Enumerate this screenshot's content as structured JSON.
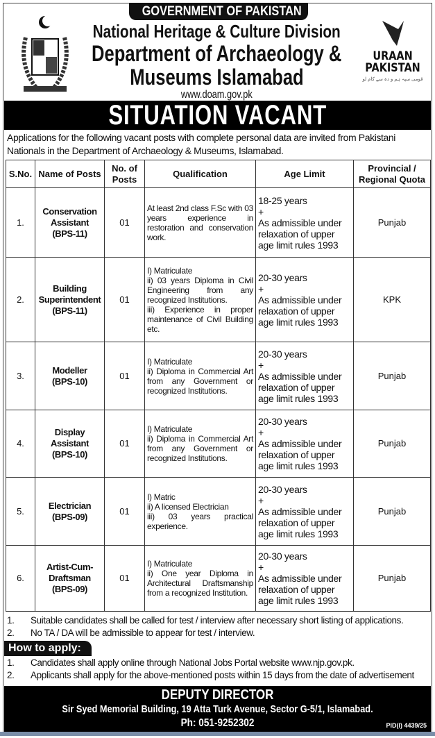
{
  "header": {
    "gov": "GOVERNMENT OF PAKISTAN",
    "division": "National Heritage & Culture Division",
    "dept_line1": "Department of Archaeology &",
    "dept_line2": "Museums Islamabad",
    "website": "www.doam.gov.pk",
    "logo_text_1": "URAAN",
    "logo_text_2": "PAKISTAN",
    "logo_urdu": "قومی سپہ ہم و دہ سے کام لو"
  },
  "title": "SITUATION VACANT",
  "intro": "Applications for the following vacant posts with complete personal data are invited from Pakistani Nationals in the Department of Archaeology & Museums, Islamabad.",
  "table": {
    "headers": [
      "S.No.",
      "Name of Posts",
      "No. of Posts",
      "Qualification",
      "Age Limit",
      "Provincial / Regional Quota"
    ],
    "rows": [
      {
        "sno": "1.",
        "post": [
          "Conservation",
          "Assistant",
          "(BPS-11)"
        ],
        "count": "01",
        "qual": [
          "At least 2nd class F.Sc with 03 years experience in restoration and conservation work."
        ],
        "age": [
          "18-25 years",
          "+",
          "As admissible under relaxation of upper age limit rules 1993"
        ],
        "quota": "Punjab"
      },
      {
        "sno": "2.",
        "post": [
          "Building",
          "Superintendent",
          "(BPS-11)"
        ],
        "count": "01",
        "qual": [
          "I) Matriculate",
          "ii) 03 years Diploma in Civil Engineering from any recognized Institutions.",
          "iii) Experience in proper maintenance of Civil Building etc."
        ],
        "age": [
          "20-30 years",
          "+",
          "As admissible under relaxation of upper age limit rules 1993"
        ],
        "quota": "KPK"
      },
      {
        "sno": "3.",
        "post": [
          "Modeller",
          "(BPS-10)"
        ],
        "count": "01",
        "qual": [
          "I) Matriculate",
          "ii) Diploma in Commercial Art from any Government or recognized Institutions."
        ],
        "age": [
          "20-30 years",
          "+",
          "As admissible under relaxation of upper age limit rules 1993"
        ],
        "quota": "Punjab"
      },
      {
        "sno": "4.",
        "post": [
          "Display",
          "Assistant",
          "(BPS-10)"
        ],
        "count": "01",
        "qual": [
          "I) Matriculate",
          "ii) Diploma in Commercial Art from any Government or recognized Institutions."
        ],
        "age": [
          "20-30 years",
          "+",
          "As admissible under relaxation of upper age limit rules 1993"
        ],
        "quota": "Punjab"
      },
      {
        "sno": "5.",
        "post": [
          "Electrician",
          "(BPS-09)"
        ],
        "count": "01",
        "qual": [
          "I) Matric",
          "ii) A licensed Electrician",
          "iii) 03 years practical experience."
        ],
        "age": [
          "20-30 years",
          "+",
          "As admissible under relaxation of upper age limit rules 1993"
        ],
        "quota": "Punjab"
      },
      {
        "sno": "6.",
        "post": [
          "Artist-Cum-",
          "Draftsman",
          "(BPS-09)"
        ],
        "count": "01",
        "qual": [
          "I) Matriculate",
          "ii) One year Diploma in Architectural Draftsmanship from a recognized Institution."
        ],
        "age": [
          "20-30 years",
          "+",
          "As admissible under relaxation of upper age limit rules 1993"
        ],
        "quota": "Punjab"
      }
    ]
  },
  "notes": [
    {
      "n": "1.",
      "t": "Suitable candidates shall be called for test / interview after necessary short listing of applications."
    },
    {
      "n": "2.",
      "t": "No TA / DA will be admissible to appear for test / interview."
    }
  ],
  "how_to_apply": {
    "title": "How to apply:",
    "items": [
      {
        "n": "1.",
        "t": "Candidates shall apply online through National Jobs Portal website www.njp.gov.pk."
      },
      {
        "n": "2.",
        "t": "Applicants shall apply for the above-mentioned posts within 15 days from the date of advertisement"
      }
    ]
  },
  "footer": {
    "title": "DEPUTY DIRECTOR",
    "address": "Sir Syed Memorial Building, 19 Atta Turk Avenue, Sector G-5/1, Islamabad.",
    "phone": "Ph: 051-9252302",
    "pid": "PID(I) 4439/25"
  }
}
